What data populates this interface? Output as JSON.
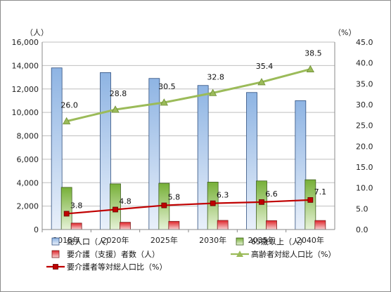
{
  "chart_data": {
    "type": "bar",
    "categories": [
      "2015年",
      "2020年",
      "2025年",
      "2030年",
      "2035年",
      "2040年"
    ],
    "y_left": {
      "unit_label": "（人）",
      "range": [
        0,
        16000
      ],
      "ticks": [
        "0",
        "2,000",
        "4,000",
        "6,000",
        "8,000",
        "10,000",
        "12,000",
        "14,000",
        "16,000"
      ]
    },
    "y_right": {
      "unit_label": "（%）",
      "range": [
        0,
        45
      ],
      "ticks": [
        "0.0",
        "5.0",
        "10.0",
        "15.0",
        "20.0",
        "25.0",
        "30.0",
        "35.0",
        "40.0",
        "45.0"
      ]
    },
    "grid": true,
    "legend_position": "bottom",
    "series": [
      {
        "name": "総人口（人）",
        "kind": "bar",
        "axis": "left",
        "color": "#4f81bd",
        "values": [
          13800,
          13400,
          12900,
          12300,
          11700,
          11000
        ]
      },
      {
        "name": "65歳以上（人）",
        "kind": "bar",
        "axis": "left",
        "color": "#9bbb59",
        "values": [
          3600,
          3900,
          3950,
          4050,
          4150,
          4250
        ]
      },
      {
        "name": "要介護（支援）者数（人）",
        "kind": "bar",
        "axis": "left",
        "color": "#c0504d",
        "values": [
          550,
          620,
          700,
          780,
          760,
          770
        ]
      },
      {
        "name": "高齢者対総人口比（%）",
        "kind": "line",
        "axis": "right",
        "color": "#9bbb59",
        "marker": "triangle",
        "values": [
          26.0,
          28.8,
          30.5,
          32.8,
          35.4,
          38.5
        ],
        "labels": [
          "26.0",
          "28.8",
          "30.5",
          "32.8",
          "35.4",
          "38.5"
        ]
      },
      {
        "name": "要介護者等対総人口比（%）",
        "kind": "line",
        "axis": "right",
        "color": "#c00000",
        "marker": "square",
        "values": [
          3.8,
          4.8,
          5.8,
          6.3,
          6.6,
          7.1
        ],
        "labels": [
          "3.8",
          "4.8",
          "5.8",
          "6.3",
          "6.6",
          "7.1"
        ]
      }
    ]
  }
}
